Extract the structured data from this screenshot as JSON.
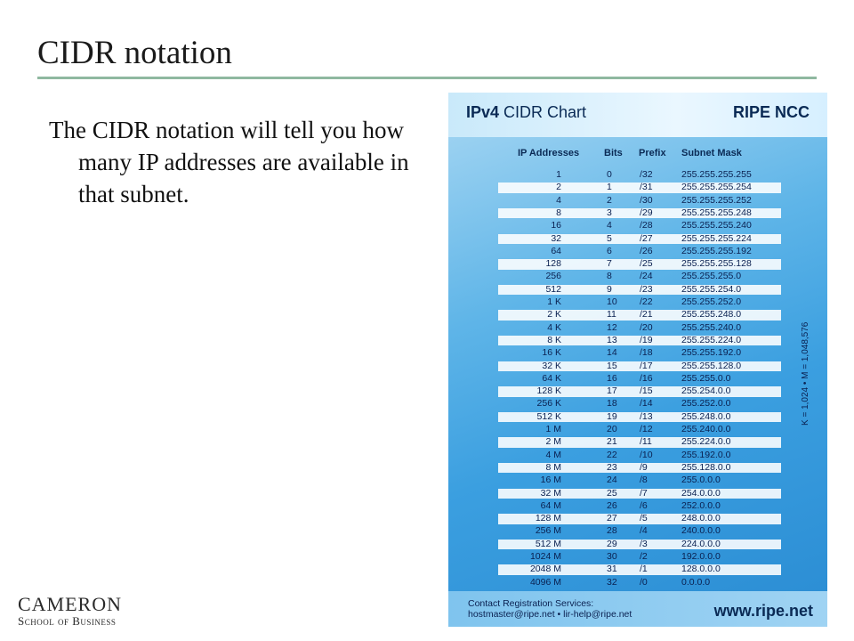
{
  "slide": {
    "title": "CIDR notation",
    "body": "The CIDR notation will tell you how many IP addresses are available in that subnet."
  },
  "logo": {
    "name": "CAMERON",
    "subtitle": "School of Business"
  },
  "chart_image": {
    "title_bold": "IPv4",
    "title_rest": " CIDR Chart",
    "org": "RIPE NCC",
    "headers": {
      "ip": "IP Addresses",
      "bits": "Bits",
      "prefix": "Prefix",
      "mask": "Subnet Mask"
    },
    "rows": [
      {
        "ip": "1",
        "bits": "0",
        "prefix": "/32",
        "mask": "255.255.255.255"
      },
      {
        "ip": "2",
        "bits": "1",
        "prefix": "/31",
        "mask": "255.255.255.254"
      },
      {
        "ip": "4",
        "bits": "2",
        "prefix": "/30",
        "mask": "255.255.255.252"
      },
      {
        "ip": "8",
        "bits": "3",
        "prefix": "/29",
        "mask": "255.255.255.248"
      },
      {
        "ip": "16",
        "bits": "4",
        "prefix": "/28",
        "mask": "255.255.255.240"
      },
      {
        "ip": "32",
        "bits": "5",
        "prefix": "/27",
        "mask": "255.255.255.224"
      },
      {
        "ip": "64",
        "bits": "6",
        "prefix": "/26",
        "mask": "255.255.255.192"
      },
      {
        "ip": "128",
        "bits": "7",
        "prefix": "/25",
        "mask": "255.255.255.128"
      },
      {
        "ip": "256",
        "bits": "8",
        "prefix": "/24",
        "mask": "255.255.255.0"
      },
      {
        "ip": "512",
        "bits": "9",
        "prefix": "/23",
        "mask": "255.255.254.0"
      },
      {
        "ip": "1 K",
        "bits": "10",
        "prefix": "/22",
        "mask": "255.255.252.0"
      },
      {
        "ip": "2 K",
        "bits": "11",
        "prefix": "/21",
        "mask": "255.255.248.0"
      },
      {
        "ip": "4 K",
        "bits": "12",
        "prefix": "/20",
        "mask": "255.255.240.0"
      },
      {
        "ip": "8 K",
        "bits": "13",
        "prefix": "/19",
        "mask": "255.255.224.0"
      },
      {
        "ip": "16 K",
        "bits": "14",
        "prefix": "/18",
        "mask": "255.255.192.0"
      },
      {
        "ip": "32 K",
        "bits": "15",
        "prefix": "/17",
        "mask": "255.255.128.0"
      },
      {
        "ip": "64 K",
        "bits": "16",
        "prefix": "/16",
        "mask": "255.255.0.0"
      },
      {
        "ip": "128 K",
        "bits": "17",
        "prefix": "/15",
        "mask": "255.254.0.0"
      },
      {
        "ip": "256 K",
        "bits": "18",
        "prefix": "/14",
        "mask": "255.252.0.0"
      },
      {
        "ip": "512 K",
        "bits": "19",
        "prefix": "/13",
        "mask": "255.248.0.0"
      },
      {
        "ip": "1 M",
        "bits": "20",
        "prefix": "/12",
        "mask": "255.240.0.0"
      },
      {
        "ip": "2 M",
        "bits": "21",
        "prefix": "/11",
        "mask": "255.224.0.0"
      },
      {
        "ip": "4 M",
        "bits": "22",
        "prefix": "/10",
        "mask": "255.192.0.0"
      },
      {
        "ip": "8 M",
        "bits": "23",
        "prefix": "/9",
        "mask": "255.128.0.0"
      },
      {
        "ip": "16 M",
        "bits": "24",
        "prefix": "/8",
        "mask": "255.0.0.0"
      },
      {
        "ip": "32 M",
        "bits": "25",
        "prefix": "/7",
        "mask": "254.0.0.0"
      },
      {
        "ip": "64 M",
        "bits": "26",
        "prefix": "/6",
        "mask": "252.0.0.0"
      },
      {
        "ip": "128 M",
        "bits": "27",
        "prefix": "/5",
        "mask": "248.0.0.0"
      },
      {
        "ip": "256 M",
        "bits": "28",
        "prefix": "/4",
        "mask": "240.0.0.0"
      },
      {
        "ip": "512 M",
        "bits": "29",
        "prefix": "/3",
        "mask": "224.0.0.0"
      },
      {
        "ip": "1024 M",
        "bits": "30",
        "prefix": "/2",
        "mask": "192.0.0.0"
      },
      {
        "ip": "2048 M",
        "bits": "31",
        "prefix": "/1",
        "mask": "128.0.0.0"
      },
      {
        "ip": "4096 M",
        "bits": "32",
        "prefix": "/0",
        "mask": "0.0.0.0"
      }
    ],
    "side_note": "K = 1,024 • M = 1,048,576",
    "contact_label": "Contact Registration Services:",
    "contact_emails": "hostmaster@ripe.net • lir-help@ripe.net",
    "website": "www.ripe.net"
  }
}
